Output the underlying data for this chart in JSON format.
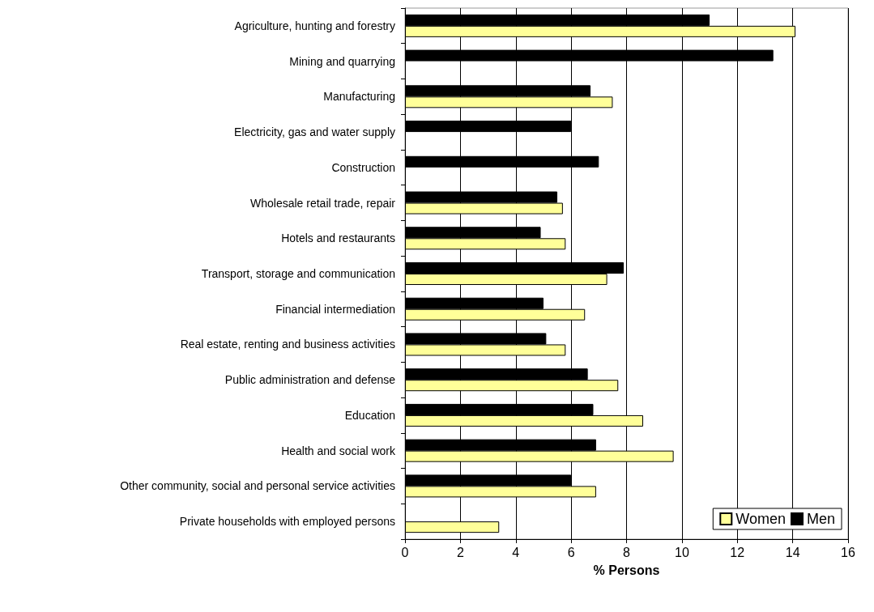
{
  "chart_data": {
    "type": "bar",
    "orientation": "horizontal",
    "categories": [
      "Agriculture, hunting and forestry",
      "Mining and quarrying",
      "Manufacturing",
      "Electricity, gas and water supply",
      "Construction",
      "Wholesale retail trade, repair",
      "Hotels and restaurants",
      "Transport, storage and communication",
      "Financial intermediation",
      "Real estate, renting and business activities",
      "Public administration and defense",
      "Education",
      "Health and social work",
      "Other community, social and personal service activities",
      "Private households with employed persons"
    ],
    "series": [
      {
        "name": "Women",
        "color": "#ffff99",
        "values": [
          14.1,
          null,
          7.5,
          null,
          null,
          5.7,
          5.8,
          7.3,
          6.5,
          5.8,
          7.7,
          8.6,
          9.7,
          6.9,
          3.4
        ]
      },
      {
        "name": "Men",
        "color": "#000000",
        "values": [
          11.0,
          13.3,
          6.7,
          6.0,
          7.0,
          5.5,
          4.9,
          7.9,
          5.0,
          5.1,
          6.6,
          6.8,
          6.9,
          6.0,
          null
        ]
      }
    ],
    "xlabel": "% Persons",
    "xlim": [
      0,
      16
    ],
    "xticks": [
      0,
      2,
      4,
      6,
      8,
      10,
      12,
      14,
      16
    ],
    "grid": "x",
    "legend": "bottom right"
  }
}
